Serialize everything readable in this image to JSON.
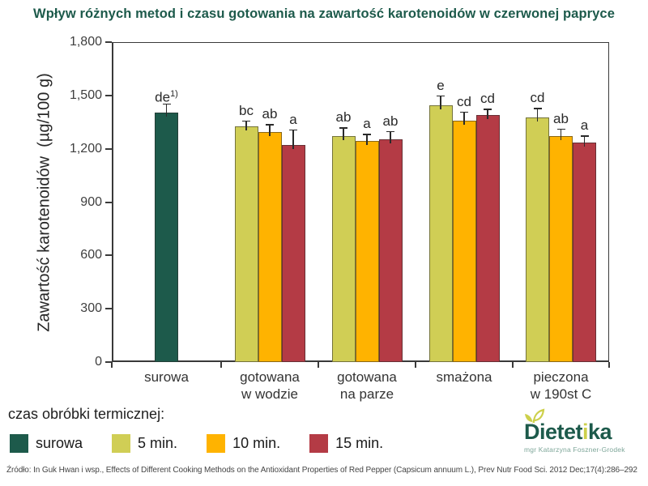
{
  "title": "Wpływ różnych metod i czasu gotowania na zawartość karotenoidów w czerwonej papryce",
  "chart_data": {
    "type": "bar",
    "title": "Wpływ różnych metod i czasu gotowania na zawartość karotenoidów w czerwonej papryce",
    "xlabel": "czas obróbki termicznej:",
    "ylabel": "Zawartość karotenoidów  (µg/100 g)",
    "ylim": [
      0,
      1800
    ],
    "grid": false,
    "legend_position": "bottom",
    "yticks": [
      0,
      300,
      600,
      900,
      1200,
      1500,
      1800
    ],
    "ytick_labels": [
      "0",
      "300",
      "600",
      "900",
      "1,200",
      "1,500",
      "1,800"
    ],
    "series_colors": {
      "surowa": "#1d5a4b",
      "5 min.": "#d0ce55",
      "10 min.": "#ffb300",
      "15 min.": "#b43b45"
    },
    "groups": [
      {
        "category": "surowa",
        "category_lines": [
          "surowa"
        ],
        "bars": [
          {
            "series": "surowa",
            "value": 1405,
            "error": 45,
            "sig": "de",
            "sig_sup": "1)"
          }
        ]
      },
      {
        "category": "gotowana w wodzie",
        "category_lines": [
          "gotowana",
          "w wodzie"
        ],
        "bars": [
          {
            "series": "5 min.",
            "value": 1325,
            "error": 30,
            "sig": "bc"
          },
          {
            "series": "10 min.",
            "value": 1295,
            "error": 40,
            "sig": "ab"
          },
          {
            "series": "15 min.",
            "value": 1220,
            "error": 85,
            "sig": "a"
          }
        ]
      },
      {
        "category": "gotowana na parze",
        "category_lines": [
          "gotowana",
          "na parze"
        ],
        "bars": [
          {
            "series": "5 min.",
            "value": 1270,
            "error": 45,
            "sig": "ab"
          },
          {
            "series": "10 min.",
            "value": 1245,
            "error": 35,
            "sig": "a"
          },
          {
            "series": "15 min.",
            "value": 1255,
            "error": 40,
            "sig": "ab"
          }
        ]
      },
      {
        "category": "smażona",
        "category_lines": [
          "smażona"
        ],
        "bars": [
          {
            "series": "5 min.",
            "value": 1445,
            "error": 50,
            "sig": "e"
          },
          {
            "series": "10 min.",
            "value": 1360,
            "error": 45,
            "sig": "cd"
          },
          {
            "series": "15 min.",
            "value": 1390,
            "error": 30,
            "sig": "cd"
          }
        ]
      },
      {
        "category": "pieczona w 190st C",
        "category_lines": [
          "pieczona",
          "w 190st C"
        ],
        "bars": [
          {
            "series": "5 min.",
            "value": 1375,
            "error": 50,
            "sig": "cd"
          },
          {
            "series": "10 min.",
            "value": 1270,
            "error": 40,
            "sig": "ab"
          },
          {
            "series": "15 min.",
            "value": 1235,
            "error": 35,
            "sig": "a"
          }
        ]
      }
    ]
  },
  "legend": {
    "title": "czas obróbki termicznej:",
    "items": [
      {
        "label": "surowa",
        "color": "#1d5a4b"
      },
      {
        "label": "5 min.",
        "color": "#d0ce55"
      },
      {
        "label": "10 min.",
        "color": "#ffb300"
      },
      {
        "label": "15 min.",
        "color": "#b43b45"
      }
    ]
  },
  "source": "Źródło: In Guk Hwan i wsp., Effects of Different Cooking Methods on the Antioxidant Properties of Red Pepper (Capsicum annuum L.), Prev Nutr Food Sci. 2012 Dec;17(4):286–292",
  "logo": {
    "name_part1": "Dietet",
    "name_accent": "i",
    "name_part2": "ka",
    "subtitle": "mgr Katarzyna Foszner-Grodek",
    "sprout_icon": "sprout-icon",
    "brand_teal": "#1d5a4b",
    "brand_yellowgreen": "#cdd04b"
  },
  "colors": {
    "title_teal": "#1d5a4b",
    "axis_frame": "#3a3a3a"
  }
}
